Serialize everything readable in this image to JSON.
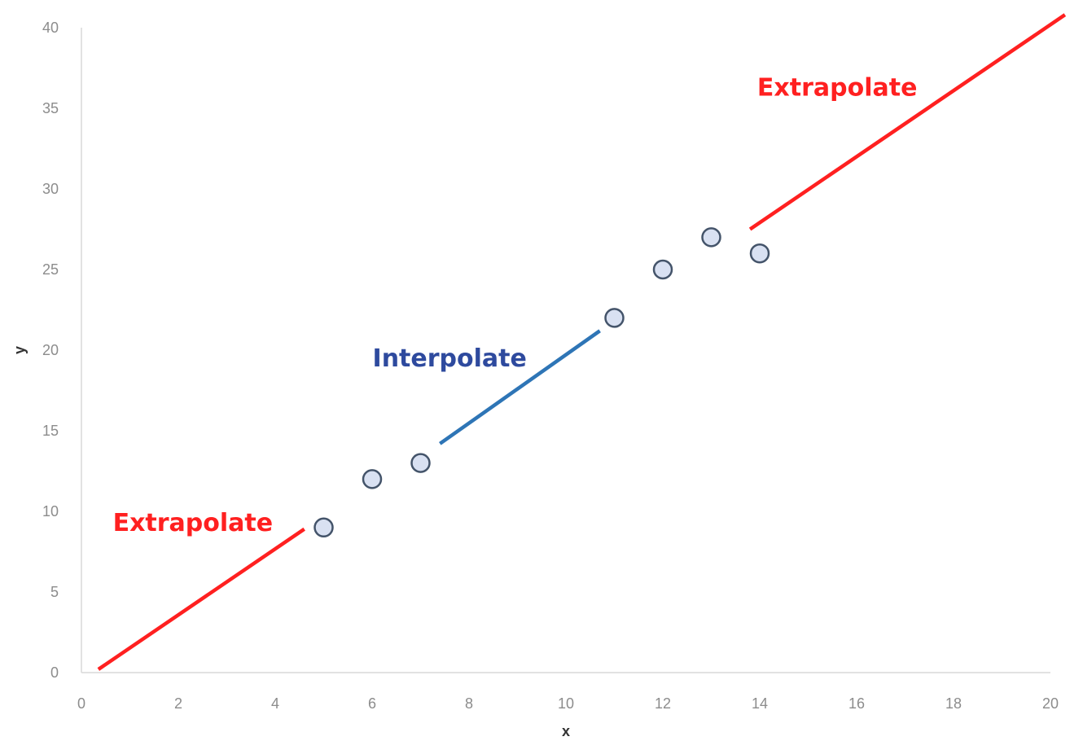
{
  "chart_data": {
    "type": "scatter",
    "title": "",
    "xlabel": "x",
    "ylabel": "y",
    "xlim": [
      0,
      20
    ],
    "ylim": [
      0,
      40
    ],
    "x_ticks": [
      "0",
      "2",
      "4",
      "6",
      "8",
      "10",
      "12",
      "14",
      "16",
      "18",
      "20"
    ],
    "y_ticks": [
      "0",
      "5",
      "10",
      "15",
      "20",
      "25",
      "30",
      "35",
      "40"
    ],
    "grid": false,
    "series": [
      {
        "x": [
          5,
          6,
          7,
          11,
          12,
          13,
          14
        ],
        "y": [
          9,
          12,
          13,
          22,
          25,
          27,
          26
        ],
        "marker_fill": "#d9e1f2",
        "marker_stroke": "#44546a"
      }
    ],
    "lines": [
      {
        "x": [
          0.35,
          4.6
        ],
        "y": [
          0.2,
          8.9
        ],
        "color": "#ff2020"
      },
      {
        "x": [
          7.4,
          10.7
        ],
        "y": [
          14.2,
          21.2
        ],
        "color": "#2e75b6"
      },
      {
        "x": [
          13.8,
          20.3
        ],
        "y": [
          27.5,
          40.8
        ],
        "color": "#ff2020"
      }
    ],
    "annotations": [
      {
        "text": "Extrapolate",
        "x": 2.3,
        "y": 9.3,
        "color": "#ff2020"
      },
      {
        "text": "Interpolate",
        "x": 7.6,
        "y": 19.5,
        "color": "#2e4a9e"
      },
      {
        "text": "Extrapolate",
        "x": 15.6,
        "y": 36.3,
        "color": "#ff2020"
      }
    ]
  }
}
